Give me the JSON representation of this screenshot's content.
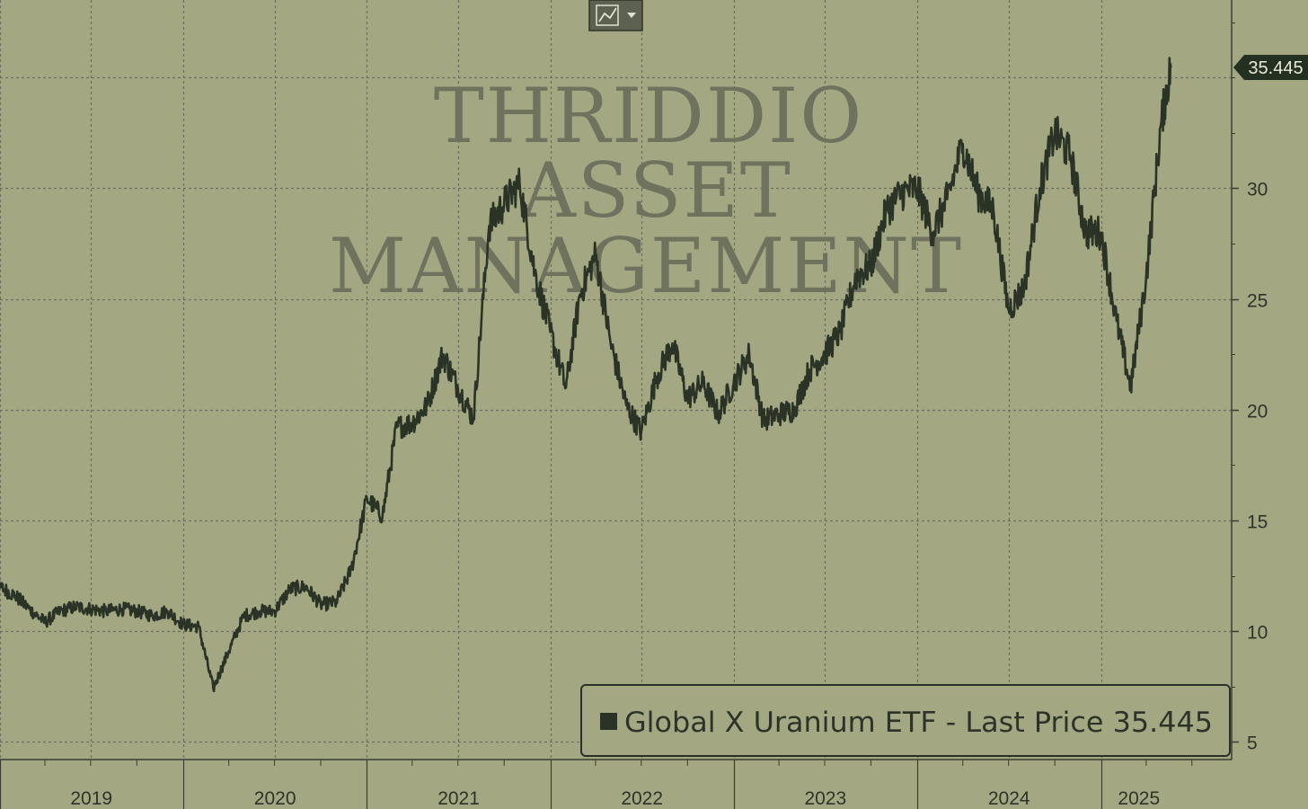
{
  "watermark": {
    "lines": [
      "THRIDDIO",
      "ASSET",
      "MANAGEMENT"
    ]
  },
  "toolbar": {
    "chart_type_icon": "line-chart-icon",
    "dropdown_icon": "caret-down-icon"
  },
  "colors": {
    "background": "#a3a882",
    "line": "#2a3326",
    "grid": "#6e725c",
    "watermark": "#6f735d",
    "legend_text": "#2e3329",
    "last_price_tag_bg": "#243021"
  },
  "last_price_tag": "35.445",
  "legend": {
    "label": "Global X Uranium ETF - Last Price 35.445",
    "position": "bottom-right"
  },
  "chart_data": {
    "type": "line",
    "title": "",
    "xlabel": "",
    "ylabel": "",
    "ylim": [
      4.2,
      38.5
    ],
    "xlim": [
      "2018-06-01",
      "2025-06-01"
    ],
    "grid": true,
    "y_ticks": [
      5,
      10,
      15,
      20,
      25,
      30
    ],
    "x_tick_labels": [
      "2019",
      "2020",
      "2021",
      "2022",
      "2023",
      "2024",
      "2025"
    ],
    "series": [
      {
        "name": "Global X Uranium ETF",
        "points": [
          [
            "2018-06-01",
            12.8
          ],
          [
            "2018-07-01",
            11.9
          ],
          [
            "2018-08-01",
            12.8
          ],
          [
            "2018-09-01",
            12.9
          ],
          [
            "2018-10-01",
            12.6
          ],
          [
            "2018-11-01",
            12.3
          ],
          [
            "2018-12-01",
            11.6
          ],
          [
            "2019-01-01",
            12.0
          ],
          [
            "2019-02-01",
            11.6
          ],
          [
            "2019-03-01",
            11.0
          ],
          [
            "2019-04-01",
            10.4
          ],
          [
            "2019-05-01",
            10.9
          ],
          [
            "2019-06-01",
            11.1
          ],
          [
            "2019-07-01",
            11.0
          ],
          [
            "2019-08-01",
            10.9
          ],
          [
            "2019-09-01",
            11.0
          ],
          [
            "2019-10-01",
            10.9
          ],
          [
            "2019-11-01",
            10.7
          ],
          [
            "2019-12-01",
            10.9
          ],
          [
            "2020-01-01",
            10.3
          ],
          [
            "2020-02-01",
            10.2
          ],
          [
            "2020-03-01",
            7.4
          ],
          [
            "2020-04-01",
            9.1
          ],
          [
            "2020-05-01",
            10.7
          ],
          [
            "2020-06-01",
            10.9
          ],
          [
            "2020-07-01",
            10.9
          ],
          [
            "2020-08-01",
            11.9
          ],
          [
            "2020-09-01",
            12.0
          ],
          [
            "2020-10-01",
            11.2
          ],
          [
            "2020-11-01",
            11.3
          ],
          [
            "2020-12-01",
            12.8
          ],
          [
            "2021-01-01",
            16.0
          ],
          [
            "2021-02-01",
            15.2
          ],
          [
            "2021-03-01",
            19.2
          ],
          [
            "2021-04-01",
            19.4
          ],
          [
            "2021-05-01",
            20.2
          ],
          [
            "2021-06-01",
            22.5
          ],
          [
            "2021-07-01",
            21.0
          ],
          [
            "2021-08-01",
            19.6
          ],
          [
            "2021-09-01",
            28.3
          ],
          [
            "2021-10-01",
            29.3
          ],
          [
            "2021-11-01",
            30.2
          ],
          [
            "2021-12-01",
            26.2
          ],
          [
            "2022-01-01",
            23.5
          ],
          [
            "2022-02-01",
            21.0
          ],
          [
            "2022-03-01",
            25.2
          ],
          [
            "2022-04-01",
            27.0
          ],
          [
            "2022-05-01",
            23.0
          ],
          [
            "2022-06-01",
            20.2
          ],
          [
            "2022-07-01",
            19.0
          ],
          [
            "2022-08-01",
            21.5
          ],
          [
            "2022-09-01",
            23.0
          ],
          [
            "2022-10-01",
            20.5
          ],
          [
            "2022-11-01",
            21.2
          ],
          [
            "2022-12-01",
            19.8
          ],
          [
            "2023-01-01",
            21.2
          ],
          [
            "2023-02-01",
            22.5
          ],
          [
            "2023-03-01",
            19.5
          ],
          [
            "2023-04-01",
            19.8
          ],
          [
            "2023-05-01",
            20.0
          ],
          [
            "2023-06-01",
            21.8
          ],
          [
            "2023-07-01",
            22.5
          ],
          [
            "2023-08-01",
            23.5
          ],
          [
            "2023-09-01",
            26.0
          ],
          [
            "2023-10-01",
            26.5
          ],
          [
            "2023-11-01",
            29.0
          ],
          [
            "2023-12-01",
            29.8
          ],
          [
            "2024-01-01",
            30.0
          ],
          [
            "2024-02-01",
            28.0
          ],
          [
            "2024-03-01",
            29.5
          ],
          [
            "2024-04-01",
            32.0
          ],
          [
            "2024-05-01",
            29.8
          ],
          [
            "2024-06-01",
            29.0
          ],
          [
            "2024-07-01",
            24.5
          ],
          [
            "2024-08-01",
            25.5
          ],
          [
            "2024-09-01",
            30.0
          ],
          [
            "2024-10-01",
            32.5
          ],
          [
            "2024-11-01",
            31.5
          ],
          [
            "2024-12-01",
            28.0
          ],
          [
            "2025-01-01",
            28.0
          ],
          [
            "2025-02-01",
            24.0
          ],
          [
            "2025-03-01",
            21.0
          ],
          [
            "2025-04-01",
            26.0
          ],
          [
            "2025-05-01",
            33.0
          ],
          [
            "2025-05-20",
            35.445
          ]
        ]
      }
    ]
  }
}
